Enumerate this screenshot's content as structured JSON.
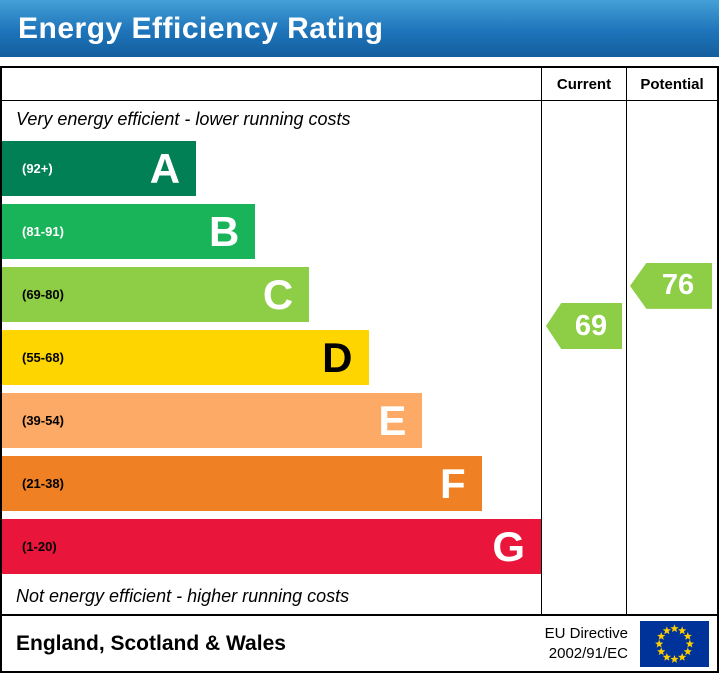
{
  "header": {
    "title": "Energy Efficiency Rating"
  },
  "columns": {
    "current": "Current",
    "potential": "Potential"
  },
  "notes": {
    "top": "Very energy efficient - lower running costs",
    "bottom": "Not energy efficient - higher running costs"
  },
  "chart_data": {
    "type": "bar",
    "title": "Energy Efficiency Rating",
    "bands": [
      {
        "letter": "A",
        "range": "(92+)",
        "min": 92,
        "max": 100,
        "color": "#008054",
        "width_pct": 36,
        "letter_color": "#ffffff",
        "range_color": "#ffffff"
      },
      {
        "letter": "B",
        "range": "(81-91)",
        "min": 81,
        "max": 91,
        "color": "#19b459",
        "width_pct": 47,
        "letter_color": "#ffffff",
        "range_color": "#ffffff"
      },
      {
        "letter": "C",
        "range": "(69-80)",
        "min": 69,
        "max": 80,
        "color": "#8dce46",
        "width_pct": 57,
        "letter_color": "#ffffff",
        "range_color": "#000000"
      },
      {
        "letter": "D",
        "range": "(55-68)",
        "min": 55,
        "max": 68,
        "color": "#ffd500",
        "width_pct": 68,
        "letter_color": "#000000",
        "range_color": "#000000"
      },
      {
        "letter": "E",
        "range": "(39-54)",
        "min": 39,
        "max": 54,
        "color": "#fcaa65",
        "width_pct": 78,
        "letter_color": "#ffffff",
        "range_color": "#000000"
      },
      {
        "letter": "F",
        "range": "(21-38)",
        "min": 21,
        "max": 38,
        "color": "#ef8023",
        "width_pct": 89,
        "letter_color": "#ffffff",
        "range_color": "#000000"
      },
      {
        "letter": "G",
        "range": "(1-20)",
        "min": 1,
        "max": 20,
        "color": "#e9153b",
        "width_pct": 100,
        "letter_color": "#ffffff",
        "range_color": "#000000"
      }
    ],
    "current": {
      "value": 69,
      "color": "#8dce46"
    },
    "potential": {
      "value": 76,
      "color": "#8dce46"
    }
  },
  "footer": {
    "region": "England, Scotland & Wales",
    "directive": [
      "EU Directive",
      "2002/91/EC"
    ],
    "flag_colors": {
      "field": "#003399",
      "stars": "#ffcc00"
    }
  }
}
